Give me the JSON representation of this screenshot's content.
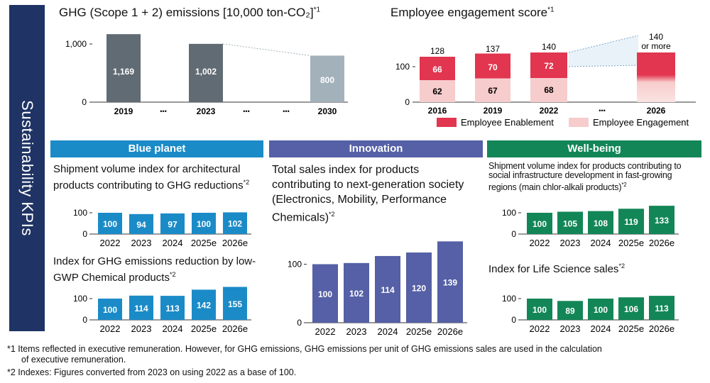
{
  "side_title": "Sustainability KPIs",
  "ghg": {
    "title": "GHG (Scope 1 + 2) emissions [10,000 ton-CO₂]",
    "note": "*1",
    "chart_data": {
      "type": "bar",
      "categories": [
        "2019",
        "2023",
        "2030"
      ],
      "values": [
        1169,
        1002,
        800
      ],
      "yticks": [
        "1,000",
        "0"
      ],
      "value_labels": [
        "1,169",
        "1,002",
        "800"
      ],
      "colors": [
        "#606b73",
        "#606b73",
        "#a3b1ba"
      ],
      "ellipsis": "•••"
    }
  },
  "engagement": {
    "title": "Employee engagement score",
    "note": "*1",
    "chart_data": {
      "type": "bar",
      "stacked": true,
      "categories": [
        "2016",
        "2019",
        "2022",
        "2026"
      ],
      "series": [
        {
          "name": "Employee Engagement",
          "values": [
            62,
            67,
            68,
            null
          ],
          "color": "#f7cccc"
        },
        {
          "name": "Employee Enablement",
          "values": [
            66,
            70,
            72,
            null
          ],
          "color": "#e2354f"
        }
      ],
      "totals": [
        "128",
        "137",
        "140"
      ],
      "target_label_line1": "140",
      "target_label_line2": "or more",
      "yticks": [
        "100",
        "0"
      ],
      "ellipsis": "•••",
      "legend": [
        "Employee Enablement",
        "Employee Engagement"
      ]
    }
  },
  "bands": {
    "blue_planet": "Blue planet",
    "innovation": "Innovation",
    "wellbeing": "Well-being"
  },
  "panels": {
    "bp1": {
      "title": "Shipment volume index for architectural products contributing to GHG reductions",
      "note": "*2",
      "chart_data": {
        "type": "bar",
        "categories": [
          "2022",
          "2023",
          "2024",
          "2025e",
          "2026e"
        ],
        "values": [
          100,
          94,
          97,
          100,
          102
        ],
        "yticks": [
          "100",
          "0"
        ],
        "color": "#1b8bc8"
      }
    },
    "bp2": {
      "title": "Index for GHG emissions reduction by low-GWP Chemical products",
      "note": "*2",
      "chart_data": {
        "type": "bar",
        "categories": [
          "2022",
          "2023",
          "2024",
          "2025e",
          "2026e"
        ],
        "values": [
          100,
          114,
          113,
          142,
          155
        ],
        "yticks": [
          "100",
          "0"
        ],
        "color": "#1b8bc8"
      }
    },
    "inn": {
      "title": "Total sales index for products contributing to next-generation society (Electronics, Mobility, Performance Chemicals)",
      "note": "*2",
      "chart_data": {
        "type": "bar",
        "categories": [
          "2022",
          "2023",
          "2024",
          "2025e",
          "2026e"
        ],
        "values": [
          100,
          102,
          114,
          120,
          139
        ],
        "yticks": [
          "100",
          "0"
        ],
        "color": "#5560a6"
      }
    },
    "wb1": {
      "title": "Shipment volume index for products contributing to social infrastructure development in fast-growing regions (main chlor-alkali products)",
      "note": "*2",
      "chart_data": {
        "type": "bar",
        "categories": [
          "2022",
          "2023",
          "2024",
          "2025e",
          "2026e"
        ],
        "values": [
          100,
          105,
          108,
          119,
          133
        ],
        "yticks": [
          "100",
          "0"
        ],
        "color": "#138657"
      }
    },
    "wb2": {
      "title": "Index for Life Science sales",
      "note": "*2",
      "chart_data": {
        "type": "bar",
        "categories": [
          "2022",
          "2023",
          "2024",
          "2025e",
          "2026e"
        ],
        "values": [
          100,
          89,
          100,
          106,
          113
        ],
        "yticks": [
          "100",
          "0"
        ],
        "color": "#138657"
      }
    }
  },
  "footnotes": {
    "f1_line1": "*1 Items reflected in executive remuneration. However, for GHG emissions, GHG emissions per unit of GHG emissions sales are used in the calculation",
    "f1_line2": "of executive remuneration.",
    "f2": "*2 Indexes: Figures converted from 2023 on using 2022 as a base of 100."
  }
}
